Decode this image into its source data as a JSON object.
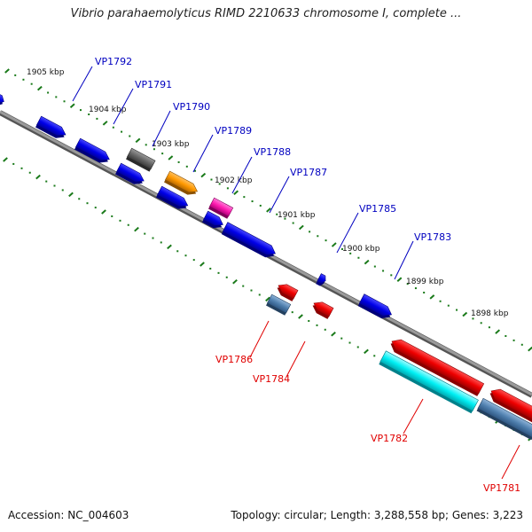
{
  "title": "Vibrio parahaemolyticus RIMD 2210633 chromosome I, complete ...",
  "footer": {
    "accession": "Accession: NC_004603",
    "summary": "Topology: circular; Length: 3,288,558 bp; Genes: 3,223"
  },
  "colors": {
    "forward_label": "#0000c0",
    "reverse_label": "#e00000",
    "backbone": "#888888",
    "tick": "#1a7a1a"
  },
  "kbp_labels": [
    "1905 kbp",
    "1904 kbp",
    "1903 kbp",
    "1902 kbp",
    "1901 kbp",
    "1900 kbp",
    "1899 kbp",
    "1898 kbp"
  ],
  "forward_genes": [
    "VP1792",
    "VP1791",
    "VP1790",
    "VP1789",
    "VP1788",
    "VP1787",
    "VP1785",
    "VP1783"
  ],
  "reverse_genes": [
    "VP1786",
    "VP1784",
    "VP1782",
    "VP1781"
  ],
  "gene_feature_colors": [
    "blue",
    "gray",
    "orange",
    "magenta",
    "red",
    "steelblue",
    "cyan"
  ]
}
